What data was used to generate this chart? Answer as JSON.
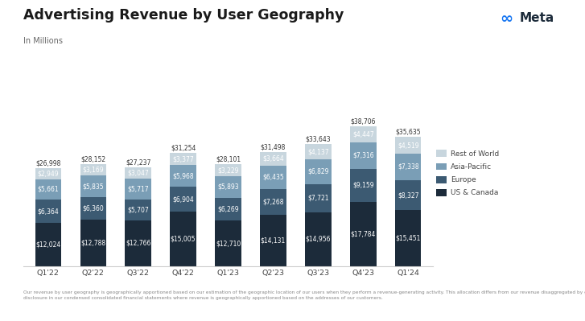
{
  "title": "Advertising Revenue by User Geography",
  "subtitle": "In Millions",
  "categories": [
    "Q1'22",
    "Q2'22",
    "Q3'22",
    "Q4'22",
    "Q1'23",
    "Q2'23",
    "Q3'23",
    "Q4'23",
    "Q1'24"
  ],
  "us_canada": [
    12024,
    12788,
    12766,
    15005,
    12710,
    14131,
    14956,
    17784,
    15451
  ],
  "europe": [
    6364,
    6360,
    5707,
    6904,
    6269,
    7268,
    7721,
    9159,
    8327
  ],
  "asia_pacific": [
    5661,
    5835,
    5717,
    5968,
    5893,
    6435,
    6829,
    7316,
    7338
  ],
  "rest_world": [
    2949,
    3169,
    3047,
    3377,
    3229,
    3664,
    4137,
    4447,
    4519
  ],
  "totals": [
    26998,
    28152,
    27237,
    31254,
    28101,
    31498,
    33643,
    38706,
    35635
  ],
  "color_us_canada": "#1c2b3a",
  "color_europe": "#3c5a72",
  "color_asia_pacific": "#7a9eb6",
  "color_rest_world": "#c8d6de",
  "background_color": "#ffffff",
  "legend_labels": [
    "Rest of World",
    "Asia-Pacific",
    "Europe",
    "US & Canada"
  ],
  "footnote": "Our revenue by user geography is geographically apportioned based on our estimation of the geographic location of our users when they perform a revenue-generating activity. This allocation differs from our revenue disaggregated by geography\ndisclosure in our condensed consolidated financial statements where revenue is geographically apportioned based on the addresses of our customers.",
  "meta_logo_color": "#1877f2",
  "meta_text_color": "#1c2b3a"
}
